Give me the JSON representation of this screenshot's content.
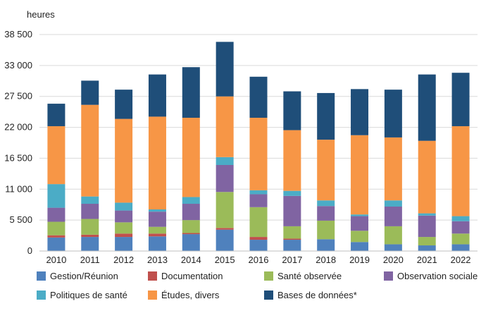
{
  "chart_data": {
    "type": "bar",
    "stacked": true,
    "ylabel": "heures",
    "ylim": [
      0,
      38500
    ],
    "yticks": [
      "0",
      "5 500",
      "11 000",
      "16 500",
      "22 000",
      "27 500",
      "33 000",
      "38 500"
    ],
    "ytick_values": [
      0,
      5500,
      11000,
      16500,
      22000,
      27500,
      33000,
      38500
    ],
    "categories": [
      "2010",
      "2011",
      "2012",
      "2013",
      "2014",
      "2015",
      "2016",
      "2017",
      "2018",
      "2019",
      "2020",
      "2021",
      "2022"
    ],
    "series": [
      {
        "name": "Gestion/Réunion",
        "color": "#4F81BD",
        "values": [
          2400,
          2500,
          2500,
          2600,
          3000,
          3800,
          2000,
          2000,
          2100,
          1600,
          1200,
          1000,
          1200
        ]
      },
      {
        "name": "Documentation",
        "color": "#C0504D",
        "values": [
          400,
          400,
          600,
          500,
          200,
          300,
          500,
          200,
          0,
          0,
          0,
          0,
          0
        ]
      },
      {
        "name": "Santé observée",
        "color": "#9BBB59",
        "values": [
          2400,
          2800,
          2000,
          1200,
          2300,
          6400,
          5300,
          2200,
          3300,
          2000,
          3200,
          1500,
          1900
        ]
      },
      {
        "name": "Observation sociale",
        "color": "#8064A2",
        "values": [
          2500,
          2700,
          2100,
          2700,
          2900,
          4800,
          2300,
          5400,
          2600,
          2600,
          3500,
          3800,
          2200
        ]
      },
      {
        "name": "Politiques de santé",
        "color": "#4BACC6",
        "values": [
          4200,
          1300,
          1400,
          400,
          1200,
          1400,
          700,
          900,
          1000,
          300,
          1100,
          400,
          900
        ]
      },
      {
        "name": "Études, divers",
        "color": "#F79646",
        "values": [
          10300,
          16300,
          14900,
          16500,
          14100,
          10800,
          12900,
          10800,
          10800,
          14100,
          11200,
          12900,
          16000
        ]
      },
      {
        "name": "Bases de données*",
        "color": "#1F4E79",
        "values": [
          4000,
          4300,
          5200,
          7500,
          9000,
          9700,
          7300,
          6900,
          8300,
          8200,
          8500,
          11800,
          9500
        ]
      }
    ]
  }
}
